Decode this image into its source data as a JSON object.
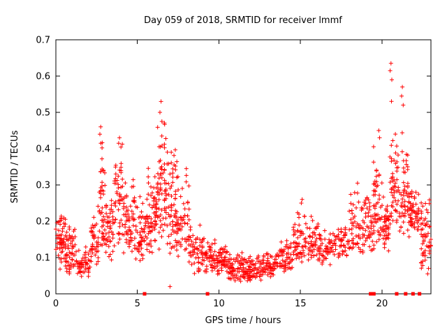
{
  "title": "Day 059 of 2018, SRMTID for receiver lmmf",
  "chart_data": {
    "type": "scatter",
    "title": "Day 059 of 2018, SRMTID for receiver lmmf",
    "xlabel": "GPS time / hours",
    "ylabel": "SRMTID / TECUs",
    "xlim": [
      0,
      23
    ],
    "ylim": [
      0,
      0.7
    ],
    "xticks": [
      0,
      5,
      10,
      15,
      20
    ],
    "yticks": [
      0,
      0.1,
      0.2,
      0.3,
      0.4,
      0.5,
      0.6,
      0.7
    ],
    "marker": "plus",
    "color": "#ff0000",
    "axis_color": "#000000",
    "grid": false,
    "legend_position": "none",
    "seed": 2018059,
    "clusters": [
      {
        "x0": 0.0,
        "x1": 0.6,
        "n": 60,
        "ymin": 0.06,
        "mode": 0.15,
        "ymax": 0.23
      },
      {
        "x0": 0.6,
        "x1": 1.2,
        "n": 55,
        "ymin": 0.05,
        "mode": 0.1,
        "ymax": 0.19
      },
      {
        "x0": 1.2,
        "x1": 2.1,
        "n": 60,
        "ymin": 0.04,
        "mode": 0.08,
        "ymax": 0.13
      },
      {
        "x0": 2.1,
        "x1": 2.6,
        "n": 40,
        "ymin": 0.07,
        "mode": 0.13,
        "ymax": 0.22
      },
      {
        "x0": 2.6,
        "x1": 3.0,
        "n": 45,
        "ymin": 0.1,
        "mode": 0.2,
        "ymax": 0.46
      },
      {
        "x0": 3.0,
        "x1": 3.6,
        "n": 50,
        "ymin": 0.08,
        "mode": 0.15,
        "ymax": 0.3
      },
      {
        "x0": 3.6,
        "x1": 4.2,
        "n": 55,
        "ymin": 0.1,
        "mode": 0.2,
        "ymax": 0.43
      },
      {
        "x0": 4.2,
        "x1": 4.9,
        "n": 60,
        "ymin": 0.1,
        "mode": 0.18,
        "ymax": 0.33
      },
      {
        "x0": 4.9,
        "x1": 5.6,
        "n": 60,
        "ymin": 0.08,
        "mode": 0.14,
        "ymax": 0.28
      },
      {
        "x0": 5.6,
        "x1": 6.2,
        "n": 65,
        "ymin": 0.1,
        "mode": 0.2,
        "ymax": 0.38
      },
      {
        "x0": 6.2,
        "x1": 6.8,
        "n": 70,
        "ymin": 0.12,
        "mode": 0.25,
        "ymax": 0.5
      },
      {
        "x0": 6.8,
        "x1": 7.4,
        "n": 60,
        "ymin": 0.1,
        "mode": 0.2,
        "ymax": 0.45
      },
      {
        "x0": 7.4,
        "x1": 8.2,
        "n": 60,
        "ymin": 0.07,
        "mode": 0.15,
        "ymax": 0.33
      },
      {
        "x0": 8.2,
        "x1": 9.0,
        "n": 55,
        "ymin": 0.05,
        "mode": 0.11,
        "ymax": 0.2
      },
      {
        "x0": 9.0,
        "x1": 9.8,
        "n": 55,
        "ymin": 0.05,
        "mode": 0.1,
        "ymax": 0.16
      },
      {
        "x0": 9.8,
        "x1": 10.6,
        "n": 60,
        "ymin": 0.05,
        "mode": 0.09,
        "ymax": 0.14
      },
      {
        "x0": 10.6,
        "x1": 11.6,
        "n": 75,
        "ymin": 0.03,
        "mode": 0.07,
        "ymax": 0.12
      },
      {
        "x0": 11.6,
        "x1": 12.6,
        "n": 75,
        "ymin": 0.03,
        "mode": 0.06,
        "ymax": 0.11
      },
      {
        "x0": 12.6,
        "x1": 13.6,
        "n": 70,
        "ymin": 0.04,
        "mode": 0.08,
        "ymax": 0.12
      },
      {
        "x0": 13.6,
        "x1": 14.5,
        "n": 60,
        "ymin": 0.05,
        "mode": 0.09,
        "ymax": 0.15
      },
      {
        "x0": 14.5,
        "x1": 15.3,
        "n": 55,
        "ymin": 0.07,
        "mode": 0.12,
        "ymax": 0.25
      },
      {
        "x0": 15.3,
        "x1": 16.1,
        "n": 50,
        "ymin": 0.08,
        "mode": 0.13,
        "ymax": 0.22
      },
      {
        "x0": 16.1,
        "x1": 17.0,
        "n": 55,
        "ymin": 0.07,
        "mode": 0.12,
        "ymax": 0.18
      },
      {
        "x0": 17.0,
        "x1": 18.0,
        "n": 55,
        "ymin": 0.09,
        "mode": 0.13,
        "ymax": 0.2
      },
      {
        "x0": 18.0,
        "x1": 18.8,
        "n": 50,
        "ymin": 0.1,
        "mode": 0.15,
        "ymax": 0.3
      },
      {
        "x0": 18.8,
        "x1": 19.5,
        "n": 50,
        "ymin": 0.1,
        "mode": 0.16,
        "ymax": 0.3
      },
      {
        "x0": 19.5,
        "x1": 20.1,
        "n": 55,
        "ymin": 0.12,
        "mode": 0.2,
        "ymax": 0.45
      },
      {
        "x0": 20.1,
        "x1": 20.5,
        "n": 40,
        "ymin": 0.1,
        "mode": 0.16,
        "ymax": 0.26
      },
      {
        "x0": 20.5,
        "x1": 20.9,
        "n": 45,
        "ymin": 0.13,
        "mode": 0.22,
        "ymax": 0.55
      },
      {
        "x0": 20.9,
        "x1": 21.6,
        "n": 60,
        "ymin": 0.15,
        "mode": 0.22,
        "ymax": 0.45
      },
      {
        "x0": 21.6,
        "x1": 22.4,
        "n": 65,
        "ymin": 0.15,
        "mode": 0.22,
        "ymax": 0.3
      },
      {
        "x0": 22.4,
        "x1": 23.0,
        "n": 55,
        "ymin": 0.05,
        "mode": 0.16,
        "ymax": 0.28
      }
    ],
    "outliers": [
      [
        6.45,
        0.53
      ],
      [
        6.38,
        0.5
      ],
      [
        6.5,
        0.475
      ],
      [
        20.55,
        0.635
      ],
      [
        20.5,
        0.615
      ],
      [
        20.6,
        0.59
      ],
      [
        21.25,
        0.57
      ],
      [
        21.2,
        0.545
      ],
      [
        21.3,
        0.52
      ],
      [
        2.75,
        0.46
      ],
      [
        2.7,
        0.44
      ],
      [
        3.9,
        0.43
      ],
      [
        3.85,
        0.415
      ],
      [
        19.8,
        0.45
      ],
      [
        19.85,
        0.43
      ],
      [
        7.0,
        0.02
      ],
      [
        15.1,
        0.26
      ],
      [
        15.05,
        0.25
      ],
      [
        8.0,
        0.345
      ],
      [
        18.5,
        0.305
      ],
      [
        22.8,
        0.055
      ],
      [
        22.85,
        0.07
      ]
    ],
    "zero_markers": [
      5.44,
      9.3,
      19.3,
      19.5,
      20.9,
      21.45,
      21.9,
      22.3
    ]
  }
}
